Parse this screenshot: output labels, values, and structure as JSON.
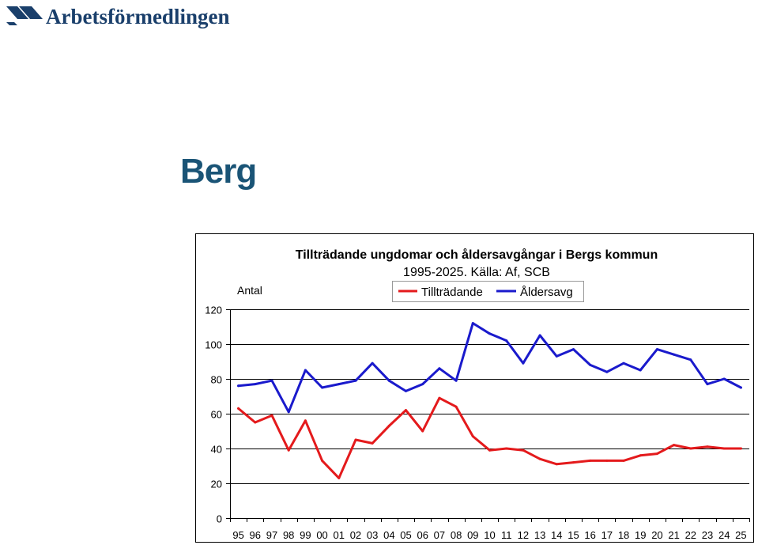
{
  "brand": {
    "name": "Arbetsförmedlingen",
    "color": "#1a3f6b"
  },
  "page": {
    "title": "Berg",
    "title_color": "#1a5476"
  },
  "chart_data": {
    "type": "line",
    "title": "Tillträdande ungdomar och åldersavgångar i Bergs kommun",
    "subtitle": "1995-2025. Källa: Af, SCB",
    "ylabel": "Antal",
    "xlabel": "",
    "ylim": [
      0,
      120
    ],
    "yticks": [
      0,
      20,
      40,
      60,
      80,
      100,
      120
    ],
    "grid": true,
    "legend_position": "top-right",
    "categories": [
      "95",
      "96",
      "97",
      "98",
      "99",
      "00",
      "01",
      "02",
      "03",
      "04",
      "05",
      "06",
      "07",
      "08",
      "09",
      "10",
      "11",
      "12",
      "13",
      "14",
      "15",
      "16",
      "17",
      "18",
      "19",
      "20",
      "21",
      "22",
      "23",
      "24",
      "25"
    ],
    "series": [
      {
        "name": "Tillträdande",
        "color": "#e41a1c",
        "values": [
          63,
          55,
          59,
          39,
          56,
          33,
          23,
          45,
          43,
          53,
          62,
          50,
          69,
          64,
          47,
          39,
          40,
          39,
          34,
          31,
          32,
          33,
          33,
          33,
          36,
          37,
          42,
          40,
          41,
          40,
          40
        ]
      },
      {
        "name": "Åldersavg",
        "color": "#1a1acc",
        "values": [
          76,
          77,
          79,
          61,
          85,
          75,
          77,
          79,
          89,
          79,
          73,
          77,
          86,
          79,
          112,
          106,
          102,
          89,
          105,
          93,
          97,
          88,
          84,
          89,
          85,
          97,
          94,
          91,
          77,
          80,
          75
        ]
      }
    ]
  }
}
